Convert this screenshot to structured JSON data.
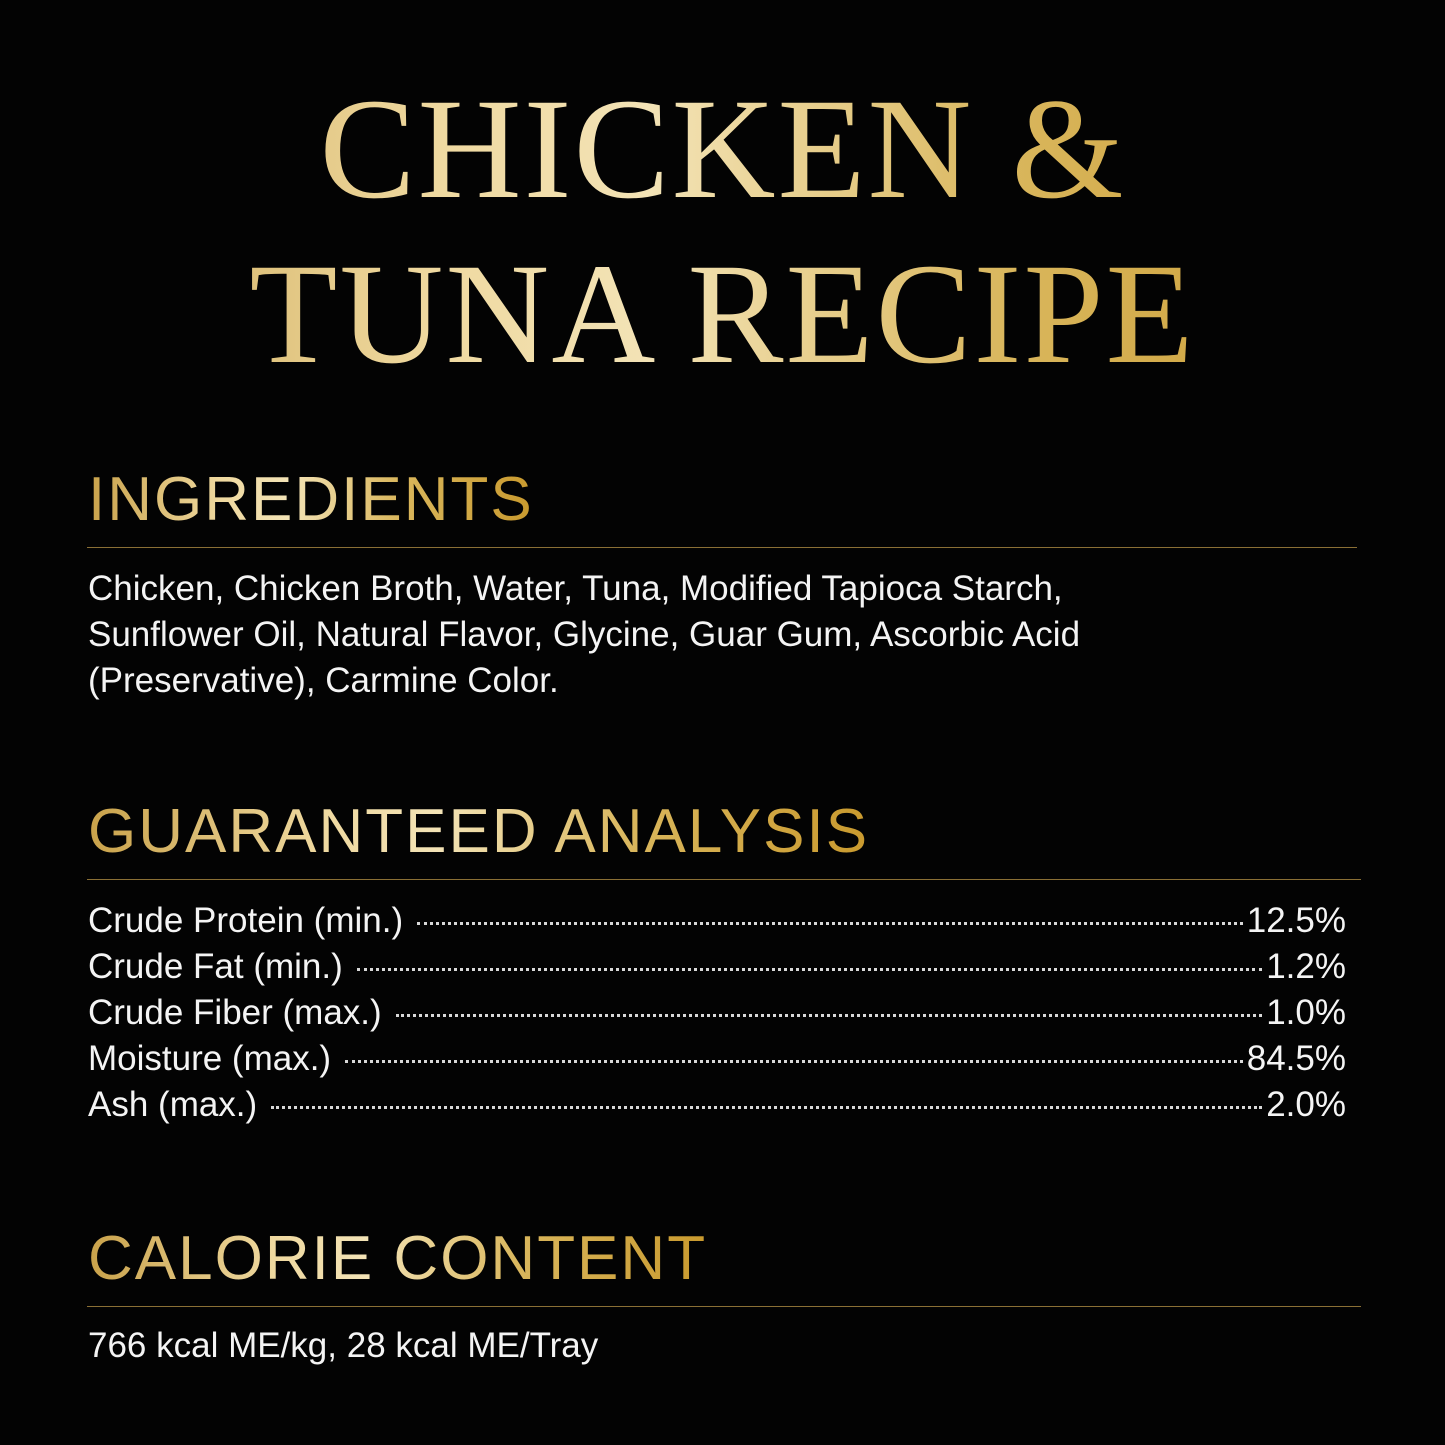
{
  "title": {
    "line1": "CHICKEN &",
    "line2": "TUNA RECIPE"
  },
  "ingredients": {
    "heading": "INGREDIENTS",
    "lines": [
      "Chicken, Chicken Broth, Water, Tuna, Modified Tapioca Starch,",
      "Sunflower Oil, Natural Flavor, Glycine, Guar Gum, Ascorbic Acid",
      "(Preservative), Carmine Color."
    ]
  },
  "analysis": {
    "heading": "GUARANTEED ANALYSIS",
    "rows": [
      {
        "label": "Crude Protein (min.)",
        "value": "12.5%"
      },
      {
        "label": "Crude Fat (min.)",
        "value": "1.2%"
      },
      {
        "label": "Crude Fiber (max.)",
        "value": "1.0%"
      },
      {
        "label": "Moisture (max.)",
        "value": "84.5%"
      },
      {
        "label": "Ash (max.)",
        "value": "2.0%"
      }
    ]
  },
  "calories": {
    "heading": "CALORIE CONTENT",
    "text": "766 kcal ME/kg, 28 kcal ME/Tray"
  },
  "colors": {
    "background": "#030303",
    "gold": "#d9b65c",
    "text": "#f4f4f4"
  }
}
